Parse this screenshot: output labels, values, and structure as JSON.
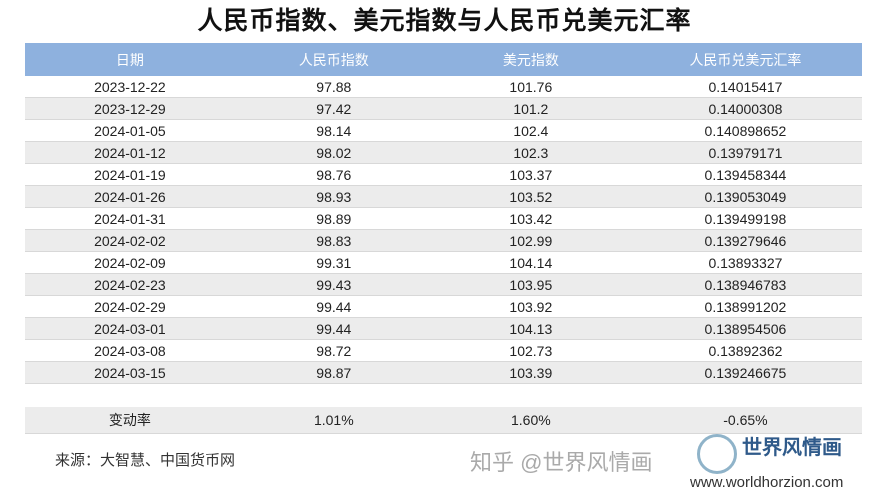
{
  "title": "人民币指数、美元指数与人民币兑美元汇率",
  "chart_data": {
    "type": "table",
    "columns": [
      "日期",
      "人民币指数",
      "美元指数",
      "人民币兑美元汇率"
    ],
    "rows": [
      [
        "2023-12-22",
        "97.88",
        "101.76",
        "0.14015417"
      ],
      [
        "2023-12-29",
        "97.42",
        "101.2",
        "0.14000308"
      ],
      [
        "2024-01-05",
        "98.14",
        "102.4",
        "0.140898652"
      ],
      [
        "2024-01-12",
        "98.02",
        "102.3",
        "0.13979171"
      ],
      [
        "2024-01-19",
        "98.76",
        "103.37",
        "0.139458344"
      ],
      [
        "2024-01-26",
        "98.93",
        "103.52",
        "0.139053049"
      ],
      [
        "2024-01-31",
        "98.89",
        "103.42",
        "0.139499198"
      ],
      [
        "2024-02-02",
        "98.83",
        "102.99",
        "0.139279646"
      ],
      [
        "2024-02-09",
        "99.31",
        "104.14",
        "0.13893327"
      ],
      [
        "2024-02-23",
        "99.43",
        "103.95",
        "0.138946783"
      ],
      [
        "2024-02-29",
        "99.44",
        "103.92",
        "0.138991202"
      ],
      [
        "2024-03-01",
        "99.44",
        "104.13",
        "0.138954506"
      ],
      [
        "2024-03-08",
        "98.72",
        "102.73",
        "0.13892362"
      ],
      [
        "2024-03-15",
        "98.87",
        "103.39",
        "0.139246675"
      ]
    ],
    "change_row": [
      "变动率",
      "1.01%",
      "1.60%",
      "-0.65%"
    ]
  },
  "colors": {
    "header": "#8eb1de",
    "alt_row": "#ececec"
  },
  "source": "来源：大智慧、中国货币网",
  "logo": {
    "name": "世界风情画",
    "watermark": "知乎 @世界风情画",
    "url": "www.worldhorzion.com"
  }
}
